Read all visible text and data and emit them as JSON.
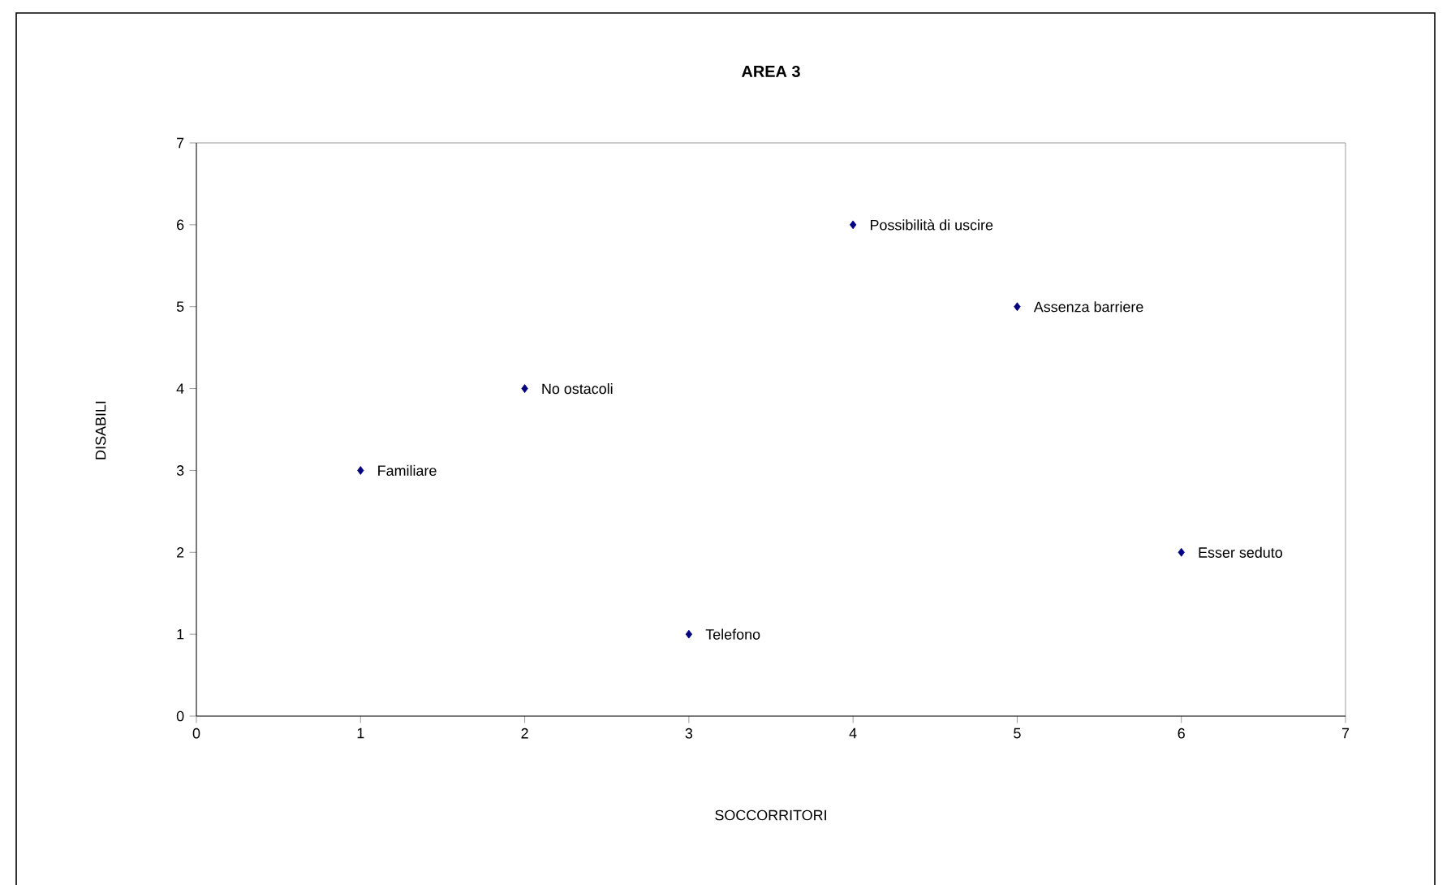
{
  "chart_data": {
    "type": "scatter",
    "title": "AREA 3",
    "xlabel": "SOCCORRITORI",
    "ylabel": "DISABILI",
    "x": [
      1,
      2,
      3,
      4,
      5,
      6
    ],
    "series": [
      {
        "color": "#000080",
        "values": [
          3,
          4,
          1,
          6,
          5,
          2
        ]
      }
    ],
    "marker": "diamond",
    "xlim": [
      0,
      7
    ],
    "ylim": [
      0,
      7
    ],
    "xticks": [
      0,
      1,
      2,
      3,
      4,
      5,
      6,
      7
    ],
    "yticks": [
      0,
      1,
      2,
      3,
      4,
      5,
      6,
      7
    ],
    "grid": false,
    "annotations": [
      {
        "text": "Familiare",
        "x": 1,
        "y": 3
      },
      {
        "text": "No ostacoli",
        "x": 2,
        "y": 4
      },
      {
        "text": "Telefono",
        "x": 3,
        "y": 1
      },
      {
        "text": "Possibilità di uscire",
        "x": 4,
        "y": 6
      },
      {
        "text": "Assenza barriere",
        "x": 5,
        "y": 5
      },
      {
        "text": "Esser seduto",
        "x": 6,
        "y": 2
      }
    ]
  }
}
